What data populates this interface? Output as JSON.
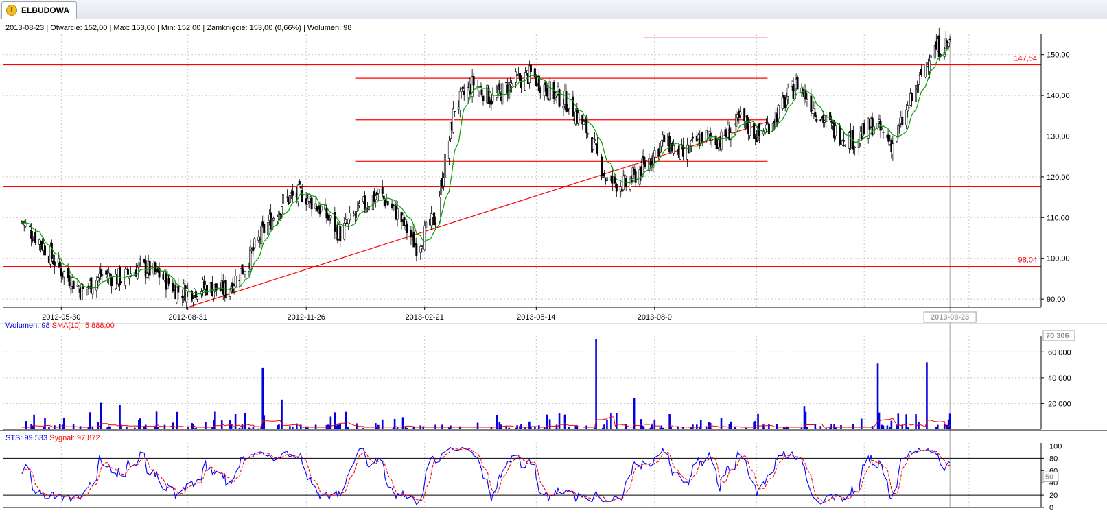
{
  "tab": {
    "label": "ELBUDOWA",
    "icon": "warning-icon"
  },
  "info_line": "2013-08-23 | Otwarcie: 152,00 | Max: 153,00 | Min: 152,00 | Zamknięcie: 153,00 (0,66%)  | Wolumen: 98",
  "colors": {
    "price_up": "#000000",
    "moving_average": "#00a000",
    "levels": "#ff0000",
    "volume": "#0000e0",
    "sma": "#ff0000",
    "sts": "#0000ff",
    "signal": "#ff0000",
    "grid": "#c8c8c8"
  },
  "chart_data": [
    {
      "type": "candlestick",
      "x_labels": [
        "2012-05-30",
        "2012-08-31",
        "2012-11-26",
        "2013-02-21",
        "2013-05-14",
        "2013-08-0"
      ],
      "cursor_label": "2013-08-23",
      "y_ticks": [
        "90,00",
        "100,00",
        "110,00",
        "120,00",
        "130,00",
        "140,00",
        "150,00"
      ],
      "y_range": [
        88,
        155
      ],
      "level_labels": [
        {
          "label": "147,54",
          "value": 147.54
        },
        {
          "label": "98,04",
          "value": 98.04
        }
      ],
      "horizontal_levels": [
        147.5,
        117.7,
        98.0
      ],
      "resistance_segments": [
        {
          "from": "2013-01-01",
          "to": "2013-10-31",
          "value": 144.2
        },
        {
          "from": "2013-01-01",
          "to": "2013-10-31",
          "value": 134.0
        },
        {
          "from": "2013-01-01",
          "to": "2013-10-31",
          "value": 123.8
        },
        {
          "from": "2013-08-01",
          "to": "2013-10-31",
          "value": 154.1
        }
      ],
      "trendline": {
        "from": {
          "date": "2012-08-31",
          "value": 88
        },
        "to": {
          "date": "2013-10-31",
          "value": 133.5
        }
      },
      "close_series": [
        [
          "2012-05-01",
          109
        ],
        [
          "2012-05-15",
          104
        ],
        [
          "2012-05-30",
          97
        ],
        [
          "2012-06-15",
          92
        ],
        [
          "2012-06-29",
          96
        ],
        [
          "2012-07-13",
          95
        ],
        [
          "2012-07-27",
          98
        ],
        [
          "2012-08-10",
          96
        ],
        [
          "2012-08-24",
          92
        ],
        [
          "2012-08-31",
          92
        ],
        [
          "2012-09-14",
          93
        ],
        [
          "2012-09-28",
          92
        ],
        [
          "2012-10-12",
          98
        ],
        [
          "2012-10-26",
          107
        ],
        [
          "2012-11-09",
          114
        ],
        [
          "2012-11-23",
          116
        ],
        [
          "2012-12-07",
          112
        ],
        [
          "2012-12-21",
          106
        ],
        [
          "2013-01-04",
          112
        ],
        [
          "2013-01-18",
          116
        ],
        [
          "2013-02-01",
          111
        ],
        [
          "2013-02-15",
          103
        ],
        [
          "2013-03-01",
          110
        ],
        [
          "2013-03-15",
          137
        ],
        [
          "2013-03-29",
          143
        ],
        [
          "2013-04-12",
          139
        ],
        [
          "2013-04-26",
          143
        ],
        [
          "2013-05-10",
          145
        ],
        [
          "2013-05-24",
          141
        ],
        [
          "2013-06-07",
          138
        ],
        [
          "2013-06-21",
          131
        ],
        [
          "2013-07-05",
          119
        ],
        [
          "2013-07-19",
          118
        ],
        [
          "2013-08-02",
          123
        ],
        [
          "2013-08-16",
          129
        ],
        [
          "2013-08-30",
          125
        ],
        [
          "2013-09-13",
          130
        ],
        [
          "2013-09-27",
          129
        ],
        [
          "2013-10-11",
          134
        ],
        [
          "2013-10-25",
          130
        ],
        [
          "2013-11-08",
          136
        ],
        [
          "2013-11-22",
          143
        ],
        [
          "2013-12-06",
          136
        ],
        [
          "2013-12-20",
          131
        ],
        [
          "2014-01-03",
          129
        ],
        [
          "2014-01-17",
          133
        ],
        [
          "2014-01-31",
          128
        ],
        [
          "2014-02-14",
          139
        ],
        [
          "2014-02-28",
          151
        ],
        [
          "2014-03-14",
          153
        ]
      ]
    },
    {
      "type": "bar",
      "legend": [
        {
          "name": "Wolumen",
          "value": "98"
        },
        {
          "name": "SMA[10]",
          "value": "5 888,00"
        }
      ],
      "y_ticks": [
        "20 000",
        "40 000",
        "60 000"
      ],
      "max_label": "70 306",
      "y_range": [
        0,
        70306
      ],
      "spikes": [
        [
          "2012-10-26",
          48000
        ],
        [
          "2012-11-09",
          23000
        ],
        [
          "2012-07-13",
          19000
        ],
        [
          "2012-06-29",
          21000
        ],
        [
          "2013-06-28",
          70306
        ],
        [
          "2013-07-26",
          24000
        ],
        [
          "2013-11-28",
          18000
        ],
        [
          "2014-01-20",
          51000
        ],
        [
          "2014-02-26",
          52000
        ]
      ],
      "sma_baseline": 3200
    },
    {
      "type": "line",
      "legend": [
        {
          "name": "STS",
          "value": "99,533"
        },
        {
          "name": "Sygnał",
          "value": "97,872"
        }
      ],
      "y_ticks": [
        "0",
        "20",
        "40",
        "60",
        "80",
        "100"
      ],
      "cursor_value_label": "50",
      "y_range": [
        0,
        105
      ],
      "reference_lines": [
        20,
        80
      ]
    }
  ]
}
